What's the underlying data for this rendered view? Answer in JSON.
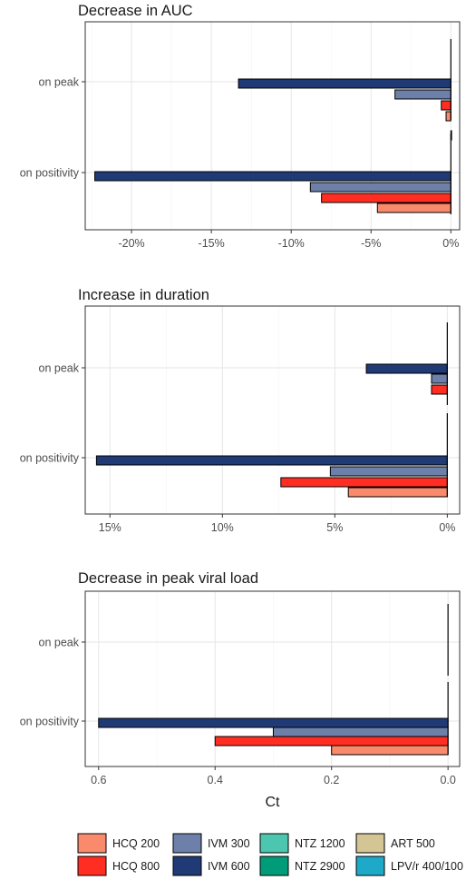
{
  "colors": {
    "HCQ 200": "#FA8A6C",
    "HCQ 800": "#FF2D22",
    "IVM 300": "#6C80AA",
    "IVM 600": "#1F3A75",
    "NTZ 1200": "#4CC6AE",
    "NTZ 2900": "#009B78",
    "ART 500": "#D3C594",
    "LPV/r 400/100": "#1FA9C9"
  },
  "chart_data": [
    {
      "type": "bar",
      "orientation": "horizontal",
      "title": "Decrease in AUC",
      "categories": [
        "on peak",
        "on positivity"
      ],
      "series": [
        {
          "name": "IVM 600",
          "values": [
            -13.3,
            -22.3
          ]
        },
        {
          "name": "IVM 300",
          "values": [
            -3.5,
            -8.8
          ]
        },
        {
          "name": "HCQ 800",
          "values": [
            -0.6,
            -8.1
          ]
        },
        {
          "name": "HCQ 200",
          "values": [
            -0.3,
            -4.6
          ]
        },
        {
          "name": "LPV/r 400/100",
          "values": [
            -0.4,
            0
          ]
        }
      ],
      "xlim": [
        -22.9,
        0.55
      ],
      "xticks": [
        -20,
        -15,
        -10,
        -5,
        0
      ],
      "xtick_labels": [
        "-20%",
        "-15%",
        "-10%",
        "-5%",
        "0%"
      ],
      "grid": true
    },
    {
      "type": "bar",
      "orientation": "horizontal",
      "title": "Increase in duration",
      "categories": [
        "on peak",
        "on positivity"
      ],
      "series": [
        {
          "name": "IVM 600",
          "values": [
            3.6,
            15.6
          ]
        },
        {
          "name": "IVM 300",
          "values": [
            0.7,
            5.2
          ]
        },
        {
          "name": "HCQ 800",
          "values": [
            0.7,
            7.4
          ]
        },
        {
          "name": "HCQ 200",
          "values": [
            0,
            4.4
          ]
        }
      ],
      "x_reversed": true,
      "xlim": [
        16.1,
        -0.55
      ],
      "xticks": [
        15,
        10,
        5,
        0
      ],
      "xtick_labels": [
        "15%",
        "10%",
        "5%",
        "0%"
      ],
      "grid": true
    },
    {
      "type": "bar",
      "orientation": "horizontal",
      "title": "Decrease in peak viral load",
      "categories": [
        "on peak",
        "on positivity"
      ],
      "series": [
        {
          "name": "IVM 600",
          "values": [
            0,
            0.6
          ]
        },
        {
          "name": "IVM 300",
          "values": [
            0,
            0.3
          ]
        },
        {
          "name": "HCQ 800",
          "values": [
            0,
            0.4
          ]
        },
        {
          "name": "HCQ 200",
          "values": [
            0,
            0.2
          ]
        }
      ],
      "x_reversed": true,
      "xlim": [
        0.623,
        -0.02
      ],
      "xticks": [
        0.6,
        0.4,
        0.2,
        0.0
      ],
      "xtick_labels": [
        "0.6",
        "0.4",
        "0.2",
        "0.0"
      ],
      "xlabel": "Ct",
      "grid": true
    }
  ],
  "legend": {
    "position": "bottom",
    "items": [
      "HCQ 200",
      "HCQ 800",
      "IVM 300",
      "IVM 600",
      "NTZ 1200",
      "NTZ 2900",
      "ART 500",
      "LPV/r 400/100"
    ]
  }
}
